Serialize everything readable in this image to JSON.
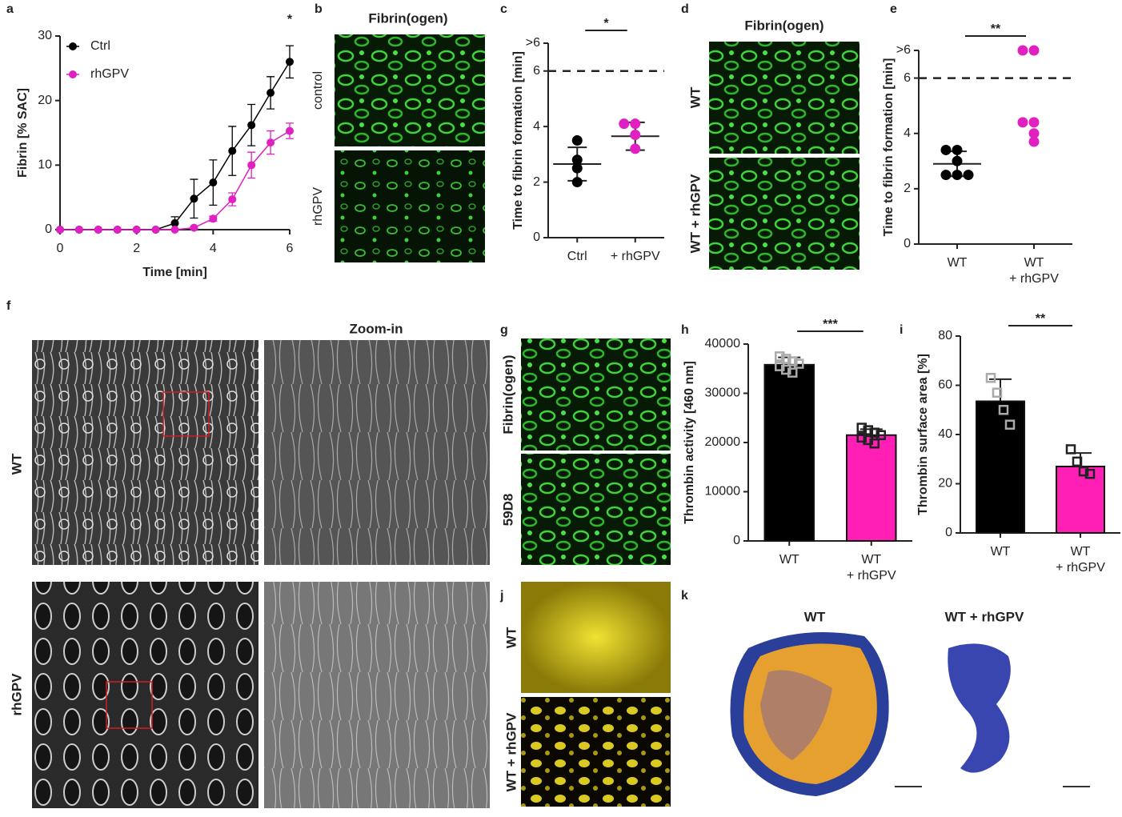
{
  "figure": {
    "panel_labels": [
      "a",
      "b",
      "c",
      "d",
      "e",
      "f",
      "g",
      "h",
      "i",
      "j",
      "k"
    ],
    "b_title": "Fibrin(ogen)",
    "b_rows": [
      "control",
      "rhGPV"
    ],
    "d_title": "Fibrin(ogen)",
    "d_rows": [
      "WT",
      "WT + rhGPV"
    ],
    "f_zoom": "Zoom-in",
    "f_rows": [
      "WT",
      "rhGPV"
    ],
    "g_rows": [
      "Fibrin(ogen)",
      "59D8"
    ],
    "j_rows": [
      "WT",
      "WT + rhGPV"
    ],
    "k_titles": [
      "WT",
      "WT + rhGPV"
    ]
  },
  "chart_data": [
    {
      "type": "line",
      "xlabel": "Time [min]",
      "ylabel": "Fibrin [% SAC]",
      "annotation": "*",
      "x": [
        0,
        0.5,
        1,
        1.5,
        2,
        2.5,
        3,
        3.5,
        4,
        4.5,
        5,
        5.5,
        6
      ],
      "xlim": [
        0,
        6
      ],
      "xticks": [
        0,
        2,
        4,
        6
      ],
      "ylim": [
        0,
        30
      ],
      "yticks": [
        0,
        10,
        20,
        30
      ],
      "legend": "upper left",
      "series": [
        {
          "name": "Ctrl",
          "color": "#000000",
          "values": [
            0,
            0,
            0,
            0,
            0,
            0,
            1,
            4.8,
            7.3,
            12.2,
            16.2,
            21.2,
            26
          ],
          "errors": [
            0,
            0,
            0,
            0,
            0,
            0,
            1,
            3,
            3.5,
            3.8,
            3.2,
            2.5,
            2.5
          ]
        },
        {
          "name": "rhGPV",
          "color": "#e020c0",
          "values": [
            0,
            0,
            0,
            0,
            0,
            0,
            0,
            0.3,
            1.7,
            4.7,
            10,
            13.5,
            15.3
          ],
          "errors": [
            0,
            0,
            0,
            0,
            0,
            0,
            0,
            0.2,
            0.4,
            1,
            2,
            1.8,
            1.2
          ]
        }
      ]
    },
    {
      "type": "dot",
      "ylabel": "Time to fibrin formation [min]",
      "significance": "*",
      "categories": [
        "Ctrl",
        "+ rhGPV"
      ],
      "colors": [
        "#000000",
        "#e020c0"
      ],
      "points": [
        [
          3.5,
          2.8,
          2.5,
          2.0
        ],
        [
          4.1,
          4.1,
          3.7,
          3.2
        ]
      ],
      "mean": [
        2.65,
        3.65
      ],
      "sd": [
        0.6,
        0.5
      ],
      "reference_line": 6,
      "ylim": [
        0,
        7
      ],
      "yticks": [
        0,
        2,
        4,
        6,
        {
          "value": 7,
          "label": ">6"
        }
      ]
    },
    {
      "type": "dot",
      "ylabel": "Time to fibrin formation [min]",
      "significance": "**",
      "categories": [
        "WT",
        "WT\n+ rhGPV"
      ],
      "colors": [
        "#000000",
        "#e020c0"
      ],
      "points": [
        [
          3.4,
          3.4,
          3.0,
          2.5,
          2.5,
          2.5
        ],
        [
          7,
          7,
          4.4,
          4.4,
          4.0,
          3.7
        ]
      ],
      "mean": [
        2.9
      ],
      "sd": [
        0.45
      ],
      "reference_line": 6,
      "ylim": [
        0,
        7
      ],
      "yticks": [
        0,
        2,
        4,
        6,
        {
          "value": 7,
          "label": ">6"
        }
      ]
    },
    {
      "type": "bar",
      "ylabel": "Thrombin activity [460 nm]",
      "significance": "***",
      "categories": [
        "WT",
        "WT\n+ rhGPV"
      ],
      "colors": [
        "#000000",
        "#ff1fb4"
      ],
      "point_colors": [
        "#aaaaaa",
        "#222222"
      ],
      "values": [
        35800,
        21500
      ],
      "errors": [
        1500,
        1200
      ],
      "points": [
        [
          37500,
          37000,
          36500,
          36000,
          35500,
          34800,
          34200
        ],
        [
          23000,
          22500,
          22000,
          21500,
          21000,
          20500,
          19800
        ]
      ],
      "ylim": [
        0,
        40000
      ],
      "yticks": [
        0,
        10000,
        20000,
        30000,
        40000
      ]
    },
    {
      "type": "bar",
      "ylabel": "Thrombin surface area [%]",
      "significance": "**",
      "categories": [
        "WT",
        "WT\n+ rhGPV"
      ],
      "colors": [
        "#000000",
        "#ff1fb4"
      ],
      "point_colors": [
        "#aaaaaa",
        "#222222"
      ],
      "values": [
        53.5,
        27
      ],
      "errors": [
        9,
        5.5
      ],
      "points": [
        [
          63,
          57,
          50,
          44
        ],
        [
          34,
          29,
          25,
          24
        ]
      ],
      "ylim": [
        0,
        80
      ],
      "yticks": [
        0,
        20,
        40,
        60,
        80
      ]
    }
  ]
}
